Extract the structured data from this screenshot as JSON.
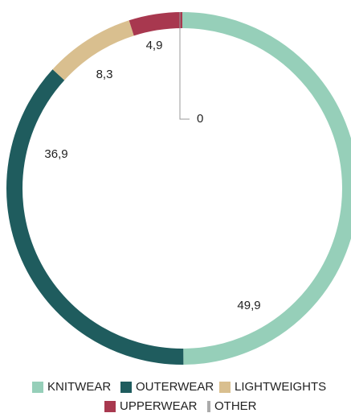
{
  "chart_data": {
    "type": "donut",
    "categories": [
      "KNITWEAR",
      "OUTERWEAR",
      "LIGHTWEIGHTS",
      "UPPERWEAR",
      "OTHER"
    ],
    "values": [
      49.9,
      36.9,
      8.3,
      4.9,
      0
    ],
    "value_labels": [
      "49,9",
      "36,9",
      "8,3",
      "4,9",
      "0"
    ],
    "colors": [
      "#96cfb9",
      "#1f5c5e",
      "#d9bf8f",
      "#a8384f",
      "#aaaaaa"
    ],
    "legend": "bottom"
  }
}
